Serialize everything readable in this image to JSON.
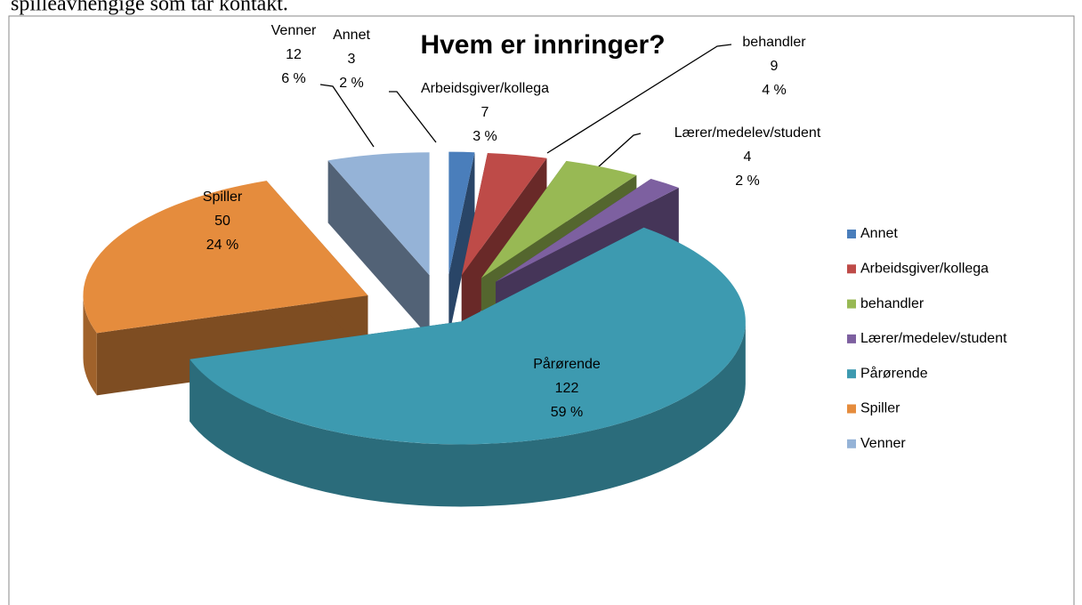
{
  "header_text": "spilleavhengige som tar kontakt.",
  "chart_data": {
    "type": "pie3d",
    "title": "Hvem er innringer?",
    "categories": [
      "Annet",
      "Arbeidsgiver/kollega",
      "behandler",
      "Lærer/medelev/student",
      "Pårørende",
      "Spiller",
      "Venner"
    ],
    "values": [
      3,
      7,
      9,
      4,
      122,
      50,
      12
    ],
    "percent_labels": [
      "2 %",
      "3 %",
      "4 %",
      "2 %",
      "59 %",
      "24 %",
      "6 %"
    ],
    "colors": [
      "#4a7ebb",
      "#be4b48",
      "#98b954",
      "#7d60a0",
      "#3d9ab0",
      "#e58c3d",
      "#95b3d7"
    ],
    "legend": "right"
  }
}
